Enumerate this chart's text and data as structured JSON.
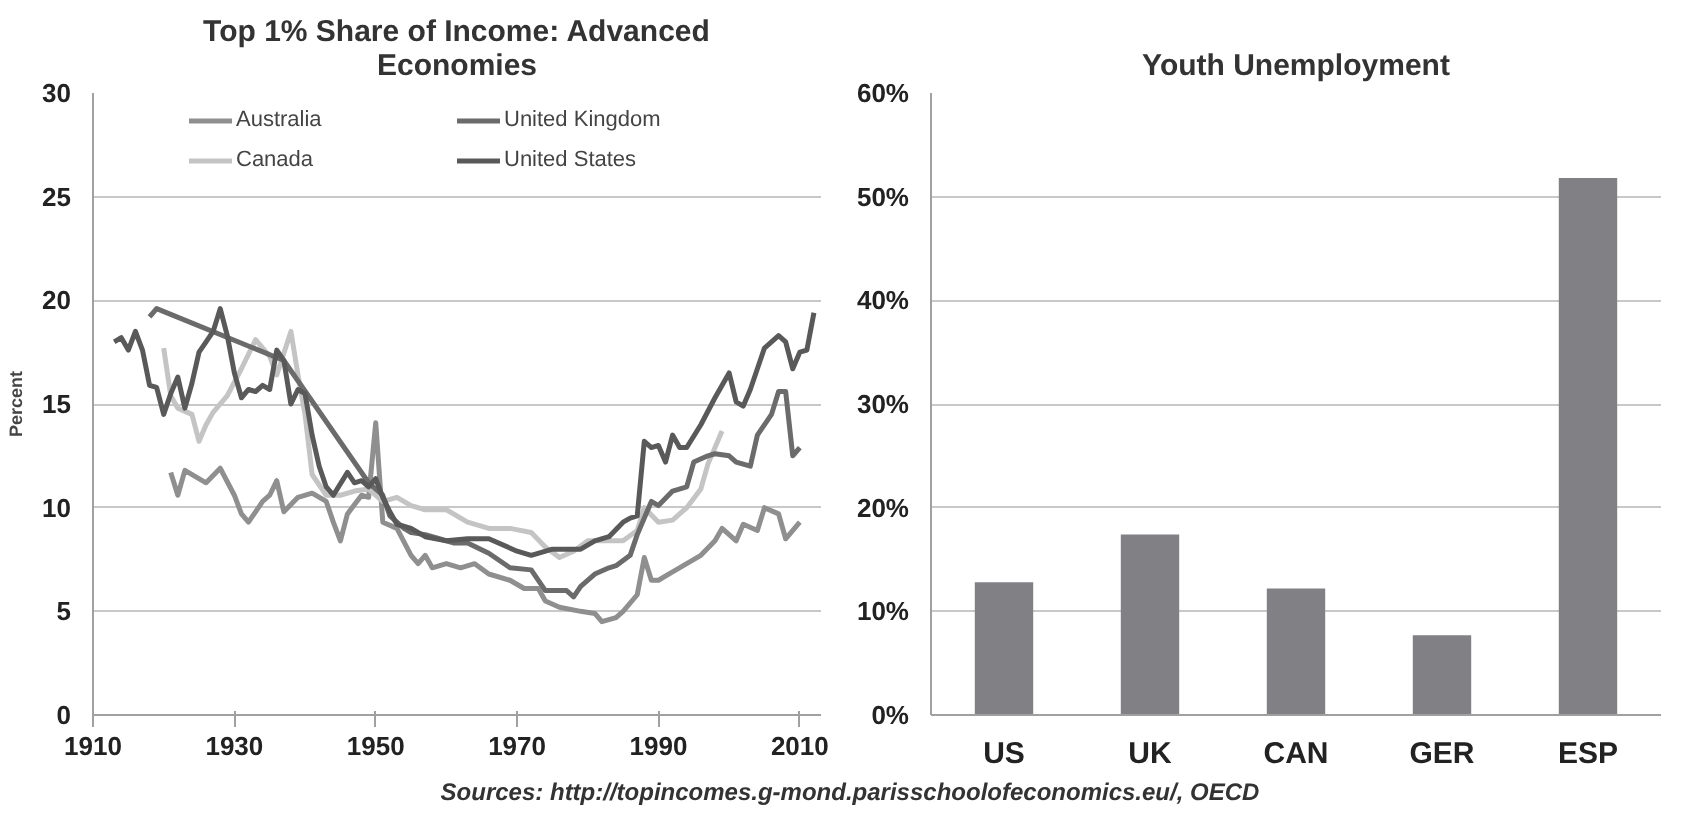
{
  "chart_data": [
    {
      "type": "line",
      "title": "Top 1% Share of Income: Advanced Economies",
      "ylabel": "Percent",
      "xlim": [
        1910,
        2013
      ],
      "ylim": [
        0,
        30
      ],
      "xticks": [
        1910,
        1930,
        1950,
        1970,
        1990,
        2010
      ],
      "yticks": [
        0,
        5,
        10,
        15,
        20,
        25,
        30
      ],
      "grid": "y",
      "legend": "top",
      "line_style": "solid",
      "marker": "none",
      "annotations": [
        "Sources: http://topincomes.g-mond.parisschoolofeconomics.eu/, OECD"
      ],
      "series": [
        {
          "name": "Australia",
          "color": "#8f8f8f",
          "x": [
            1921,
            1922,
            1923,
            1926,
            1928,
            1930,
            1931,
            1932,
            1934,
            1935,
            1936,
            1937,
            1939,
            1941,
            1943,
            1944,
            1945,
            1946,
            1948,
            1949,
            1950,
            1951,
            1953,
            1955,
            1956,
            1957,
            1958,
            1960,
            1962,
            1964,
            1966,
            1969,
            1971,
            1973,
            1974,
            1976,
            1979,
            1981,
            1982,
            1984,
            1985,
            1987,
            1988,
            1989,
            1990,
            1992,
            1994,
            1996,
            1998,
            1999,
            2001,
            2002,
            2004,
            2005,
            2007,
            2008,
            2010
          ],
          "values": [
            11.7,
            10.6,
            11.8,
            11.2,
            11.9,
            10.6,
            9.7,
            9.3,
            10.3,
            10.6,
            11.3,
            9.8,
            10.5,
            10.7,
            10.3,
            9.3,
            8.4,
            9.7,
            10.6,
            10.5,
            14.1,
            9.3,
            9.0,
            7.7,
            7.3,
            7.7,
            7.1,
            7.3,
            7.1,
            7.3,
            6.8,
            6.5,
            6.1,
            6.1,
            5.5,
            5.2,
            5.0,
            4.9,
            4.5,
            4.7,
            5.0,
            5.8,
            7.6,
            6.5,
            6.5,
            6.9,
            7.3,
            7.7,
            8.4,
            9.0,
            8.4,
            9.2,
            8.9,
            10.0,
            9.7,
            8.5,
            9.3
          ]
        },
        {
          "name": "Canada",
          "color": "#c4c4c4",
          "x": [
            1920,
            1921,
            1922,
            1924,
            1925,
            1926,
            1927,
            1929,
            1931,
            1933,
            1935,
            1936,
            1938,
            1939,
            1940,
            1941,
            1943,
            1945,
            1947,
            1949,
            1951,
            1953,
            1955,
            1957,
            1960,
            1963,
            1966,
            1969,
            1972,
            1974,
            1976,
            1978,
            1980,
            1983,
            1985,
            1987,
            1988,
            1990,
            1992,
            1994,
            1996,
            1997,
            1999
          ],
          "values": [
            17.7,
            15.4,
            14.8,
            14.5,
            13.2,
            14.0,
            14.6,
            15.4,
            16.7,
            18.1,
            17.3,
            16.4,
            18.5,
            16.4,
            14.5,
            11.6,
            10.6,
            10.6,
            10.8,
            10.9,
            10.3,
            10.5,
            10.1,
            9.9,
            9.9,
            9.3,
            9.0,
            9.0,
            8.8,
            8.1,
            7.6,
            7.9,
            8.4,
            8.4,
            8.4,
            8.9,
            10.0,
            9.3,
            9.4,
            10.0,
            10.9,
            12.1,
            13.7
          ]
        },
        {
          "name": "United Kingdom",
          "color": "#6b6b6b",
          "x": [
            1918,
            1919,
            1937,
            1949,
            1951,
            1952,
            1953,
            1954,
            1955,
            1957,
            1959,
            1961,
            1963,
            1966,
            1969,
            1972,
            1974,
            1977,
            1978,
            1979,
            1981,
            1983,
            1984,
            1986,
            1987,
            1989,
            1990,
            1992,
            1994,
            1995,
            1997,
            1998,
            2000,
            2001,
            2003,
            2004,
            2006,
            2007,
            2008,
            2009,
            2010
          ],
          "values": [
            19.2,
            19.6,
            17.1,
            11.2,
            10.6,
            9.6,
            9.3,
            9.0,
            8.8,
            8.7,
            8.5,
            8.3,
            8.3,
            7.8,
            7.1,
            7.0,
            6.0,
            6.0,
            5.7,
            6.2,
            6.8,
            7.1,
            7.2,
            7.7,
            8.7,
            10.3,
            10.1,
            10.8,
            11.0,
            12.2,
            12.5,
            12.6,
            12.5,
            12.2,
            12.0,
            13.5,
            14.5,
            15.6,
            15.6,
            12.5,
            12.9
          ]
        },
        {
          "name": "United States",
          "color": "#595959",
          "x": [
            1913,
            1914,
            1915,
            1916,
            1917,
            1918,
            1919,
            1920,
            1921,
            1922,
            1923,
            1924,
            1925,
            1926,
            1927,
            1928,
            1929,
            1930,
            1931,
            1932,
            1933,
            1934,
            1935,
            1936,
            1937,
            1938,
            1939,
            1940,
            1941,
            1942,
            1943,
            1944,
            1946,
            1947,
            1948,
            1949,
            1950,
            1951,
            1952,
            1953,
            1955,
            1957,
            1960,
            1963,
            1966,
            1970,
            1972,
            1975,
            1979,
            1981,
            1983,
            1985,
            1986,
            1987,
            1988,
            1989,
            1990,
            1991,
            1992,
            1993,
            1994,
            1996,
            1998,
            2000,
            2001,
            2002,
            2003,
            2005,
            2007,
            2008,
            2009,
            2010,
            2011,
            2012
          ],
          "values": [
            18.0,
            18.2,
            17.6,
            18.5,
            17.6,
            15.9,
            15.8,
            14.5,
            15.5,
            16.3,
            14.8,
            16.0,
            17.5,
            18.0,
            18.5,
            19.6,
            18.3,
            16.5,
            15.3,
            15.7,
            15.6,
            15.9,
            15.7,
            17.6,
            17.1,
            15.0,
            15.7,
            15.5,
            13.5,
            12.0,
            11.0,
            10.6,
            11.7,
            11.2,
            11.3,
            11.0,
            11.4,
            10.5,
            9.8,
            9.2,
            9.0,
            8.6,
            8.4,
            8.5,
            8.5,
            7.9,
            7.7,
            8.0,
            8.0,
            8.4,
            8.6,
            9.3,
            9.5,
            9.6,
            13.2,
            12.9,
            13.0,
            12.2,
            13.5,
            12.9,
            12.9,
            14.0,
            15.3,
            16.5,
            15.1,
            14.9,
            15.7,
            17.7,
            18.3,
            18.0,
            16.7,
            17.5,
            17.6,
            19.4
          ]
        }
      ]
    },
    {
      "type": "bar",
      "title": "Youth Unemployment",
      "categories": [
        "US",
        "UK",
        "CAN",
        "GER",
        "ESP"
      ],
      "values": [
        12.8,
        17.4,
        12.2,
        7.7,
        51.8
      ],
      "color": "#808085",
      "ylim": [
        0,
        60
      ],
      "yticks": [
        {
          "value": 0,
          "label": "0%"
        },
        {
          "value": 10,
          "label": "10%"
        },
        {
          "value": 20,
          "label": "20%"
        },
        {
          "value": 30,
          "label": "30%"
        },
        {
          "value": 40,
          "label": "40%"
        },
        {
          "value": 50,
          "label": "50%"
        },
        {
          "value": 60,
          "label": "60%"
        }
      ],
      "grid": "y"
    }
  ]
}
